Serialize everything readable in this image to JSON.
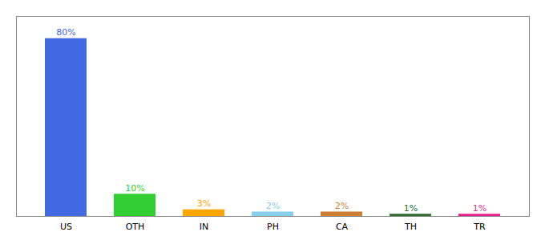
{
  "chart_data": {
    "type": "bar",
    "categories": [
      "US",
      "OTH",
      "IN",
      "PH",
      "CA",
      "TH",
      "TR"
    ],
    "values": [
      80,
      10,
      3,
      2,
      2,
      1,
      1
    ],
    "value_labels": [
      "80%",
      "10%",
      "3%",
      "2%",
      "2%",
      "1%",
      "1%"
    ],
    "colors": [
      "#4169e1",
      "#32cd32",
      "#ffa500",
      "#87ceeb",
      "#cd7f32",
      "#2d6a2d",
      "#e91e8c"
    ],
    "ylim": [
      0,
      90
    ],
    "data_labels": true,
    "tick_labels": "x",
    "grid": false
  }
}
